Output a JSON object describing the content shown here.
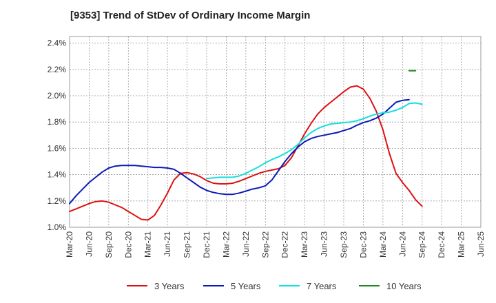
{
  "chart_data": {
    "type": "line",
    "title": "[9353]  Trend of StDev of Ordinary Income Margin",
    "xlabel": "",
    "ylabel": "",
    "x_ticks": [
      "Mar-20",
      "Jun-20",
      "Sep-20",
      "Dec-20",
      "Mar-21",
      "Jun-21",
      "Sep-21",
      "Dec-21",
      "Mar-22",
      "Jun-22",
      "Sep-22",
      "Dec-22",
      "Mar-23",
      "Jun-23",
      "Sep-23",
      "Dec-23",
      "Mar-24",
      "Jun-24",
      "Sep-24",
      "Dec-24",
      "Mar-25",
      "Jun-25"
    ],
    "y_ticks": [
      "1.0%",
      "1.2%",
      "1.4%",
      "1.6%",
      "1.8%",
      "2.0%",
      "2.2%",
      "2.4%"
    ],
    "ylim": [
      1.0,
      2.45
    ],
    "grid": true,
    "legend_position": "bottom",
    "series": [
      {
        "name": "3 Years",
        "color": "#dd1111",
        "start_index": 0,
        "values": [
          1.12,
          1.14,
          1.16,
          1.18,
          1.195,
          1.2,
          1.19,
          1.17,
          1.15,
          1.12,
          1.09,
          1.06,
          1.055,
          1.09,
          1.17,
          1.26,
          1.36,
          1.41,
          1.415,
          1.405,
          1.385,
          1.355,
          1.335,
          1.33,
          1.33,
          1.335,
          1.35,
          1.37,
          1.39,
          1.41,
          1.425,
          1.435,
          1.445,
          1.47,
          1.53,
          1.62,
          1.71,
          1.79,
          1.86,
          1.91,
          1.95,
          1.99,
          2.03,
          2.065,
          2.075,
          2.05,
          1.98,
          1.88,
          1.74,
          1.56,
          1.41,
          1.34,
          1.28,
          1.21,
          1.16
        ]
      },
      {
        "name": "5 Years",
        "color": "#0a1ab5",
        "start_index": 0,
        "values": [
          1.18,
          1.24,
          1.29,
          1.34,
          1.38,
          1.42,
          1.45,
          1.465,
          1.47,
          1.47,
          1.47,
          1.465,
          1.46,
          1.455,
          1.455,
          1.45,
          1.44,
          1.41,
          1.375,
          1.34,
          1.305,
          1.28,
          1.265,
          1.255,
          1.25,
          1.25,
          1.26,
          1.275,
          1.29,
          1.3,
          1.315,
          1.36,
          1.43,
          1.5,
          1.56,
          1.61,
          1.65,
          1.675,
          1.69,
          1.7,
          1.71,
          1.72,
          1.735,
          1.75,
          1.775,
          1.795,
          1.81,
          1.83,
          1.86,
          1.905,
          1.95,
          1.965,
          1.97
        ]
      },
      {
        "name": "7 Years",
        "color": "#11e0e0",
        "start_index": 21,
        "values": [
          1.37,
          1.375,
          1.38,
          1.38,
          1.38,
          1.39,
          1.41,
          1.435,
          1.46,
          1.49,
          1.515,
          1.535,
          1.56,
          1.59,
          1.63,
          1.68,
          1.72,
          1.75,
          1.77,
          1.785,
          1.79,
          1.795,
          1.8,
          1.81,
          1.825,
          1.845,
          1.86,
          1.87,
          1.875,
          1.89,
          1.91,
          1.94,
          1.945,
          1.935
        ]
      },
      {
        "name": "10 Years",
        "color": "#228822",
        "start_index": 52,
        "values": [
          2.19,
          2.19
        ]
      }
    ]
  }
}
